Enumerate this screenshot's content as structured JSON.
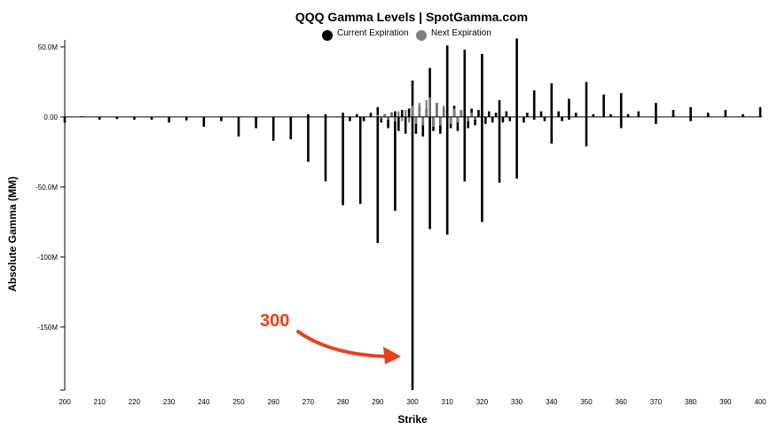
{
  "chart_data": {
    "type": "bar",
    "title": "QQQ Gamma Levels | SpotGamma.com",
    "xlabel": "Strike",
    "ylabel": "Absolute Gamma (MM)",
    "xlim": [
      200,
      400
    ],
    "ylim": [
      -195,
      55
    ],
    "x_ticks": [
      200,
      210,
      220,
      230,
      240,
      250,
      260,
      270,
      280,
      290,
      300,
      310,
      320,
      330,
      340,
      350,
      360,
      370,
      380,
      390,
      400
    ],
    "y_ticks": [
      {
        "value": 50,
        "label": "50.0M"
      },
      {
        "value": 0,
        "label": "0.00"
      },
      {
        "value": -50,
        "label": "-50.0M"
      },
      {
        "value": -100,
        "label": "-100M"
      },
      {
        "value": -150,
        "label": "-150M"
      }
    ],
    "legend": {
      "placement": "top-center"
    },
    "series": [
      {
        "name": "Current Expiration",
        "color": "#000000",
        "points": [
          {
            "x": 200,
            "y": -4
          },
          {
            "x": 205,
            "y": 0.5
          },
          {
            "x": 210,
            "y": -2
          },
          {
            "x": 215,
            "y": -1.5
          },
          {
            "x": 220,
            "y": -2
          },
          {
            "x": 225,
            "y": -2
          },
          {
            "x": 230,
            "y": -4
          },
          {
            "x": 235,
            "y": -2.5
          },
          {
            "x": 240,
            "y": -7
          },
          {
            "x": 245,
            "y": -3
          },
          {
            "x": 250,
            "y": -14
          },
          {
            "x": 255,
            "y": -8
          },
          {
            "x": 260,
            "y": -17
          },
          {
            "x": 265,
            "y": -16
          },
          {
            "x": 270,
            "y": -32
          },
          {
            "x": 270,
            "y": 2
          },
          {
            "x": 275,
            "y": -46
          },
          {
            "x": 275,
            "y": 2
          },
          {
            "x": 280,
            "y": -63
          },
          {
            "x": 280,
            "y": 3
          },
          {
            "x": 282,
            "y": -3
          },
          {
            "x": 284,
            "y": 2
          },
          {
            "x": 285,
            "y": -62
          },
          {
            "x": 286,
            "y": -3
          },
          {
            "x": 288,
            "y": 3
          },
          {
            "x": 290,
            "y": -90
          },
          {
            "x": 290,
            "y": 7
          },
          {
            "x": 291,
            "y": -4
          },
          {
            "x": 292,
            "y": 2
          },
          {
            "x": 293,
            "y": -8
          },
          {
            "x": 294,
            "y": 3
          },
          {
            "x": 295,
            "y": -67
          },
          {
            "x": 295,
            "y": 4
          },
          {
            "x": 296,
            "y": -10
          },
          {
            "x": 297,
            "y": 5
          },
          {
            "x": 298,
            "y": -12
          },
          {
            "x": 299,
            "y": 6
          },
          {
            "x": 300,
            "y": -195
          },
          {
            "x": 300,
            "y": 26
          },
          {
            "x": 301,
            "y": -12
          },
          {
            "x": 302,
            "y": 8
          },
          {
            "x": 303,
            "y": -14
          },
          {
            "x": 304,
            "y": 6
          },
          {
            "x": 305,
            "y": -80
          },
          {
            "x": 305,
            "y": 35
          },
          {
            "x": 306,
            "y": -10
          },
          {
            "x": 307,
            "y": 10
          },
          {
            "x": 308,
            "y": -12
          },
          {
            "x": 309,
            "y": 6
          },
          {
            "x": 310,
            "y": -84
          },
          {
            "x": 310,
            "y": 51
          },
          {
            "x": 311,
            "y": -8
          },
          {
            "x": 312,
            "y": 8
          },
          {
            "x": 313,
            "y": -10
          },
          {
            "x": 314,
            "y": 5
          },
          {
            "x": 315,
            "y": -46
          },
          {
            "x": 315,
            "y": 48
          },
          {
            "x": 316,
            "y": -8
          },
          {
            "x": 317,
            "y": 6
          },
          {
            "x": 318,
            "y": -6
          },
          {
            "x": 319,
            "y": 5
          },
          {
            "x": 320,
            "y": -75
          },
          {
            "x": 320,
            "y": 45
          },
          {
            "x": 321,
            "y": -5
          },
          {
            "x": 322,
            "y": 4
          },
          {
            "x": 323,
            "y": -4
          },
          {
            "x": 324,
            "y": 3
          },
          {
            "x": 325,
            "y": -47
          },
          {
            "x": 325,
            "y": 12
          },
          {
            "x": 326,
            "y": -4
          },
          {
            "x": 327,
            "y": 4
          },
          {
            "x": 328,
            "y": -3
          },
          {
            "x": 330,
            "y": -44
          },
          {
            "x": 330,
            "y": 56
          },
          {
            "x": 332,
            "y": -4
          },
          {
            "x": 333,
            "y": 3
          },
          {
            "x": 335,
            "y": -2
          },
          {
            "x": 335,
            "y": 19
          },
          {
            "x": 337,
            "y": 4
          },
          {
            "x": 338,
            "y": -3
          },
          {
            "x": 340,
            "y": -19
          },
          {
            "x": 340,
            "y": 24
          },
          {
            "x": 342,
            "y": 4
          },
          {
            "x": 343,
            "y": -3
          },
          {
            "x": 345,
            "y": 13
          },
          {
            "x": 345,
            "y": -2
          },
          {
            "x": 347,
            "y": 3
          },
          {
            "x": 350,
            "y": -21
          },
          {
            "x": 350,
            "y": 25
          },
          {
            "x": 352,
            "y": 2
          },
          {
            "x": 355,
            "y": 16
          },
          {
            "x": 357,
            "y": 2
          },
          {
            "x": 360,
            "y": -8
          },
          {
            "x": 360,
            "y": 17
          },
          {
            "x": 362,
            "y": 2
          },
          {
            "x": 365,
            "y": 4
          },
          {
            "x": 370,
            "y": -5
          },
          {
            "x": 370,
            "y": 10
          },
          {
            "x": 375,
            "y": 5
          },
          {
            "x": 380,
            "y": -3
          },
          {
            "x": 380,
            "y": 7
          },
          {
            "x": 385,
            "y": 3
          },
          {
            "x": 390,
            "y": 5
          },
          {
            "x": 395,
            "y": 2
          },
          {
            "x": 400,
            "y": 7
          }
        ]
      },
      {
        "name": "Next Expiration",
        "color": "#808080",
        "points": [
          {
            "x": 290,
            "y": 1.5
          },
          {
            "x": 291,
            "y": -1.5
          },
          {
            "x": 292,
            "y": 2
          },
          {
            "x": 293,
            "y": -2
          },
          {
            "x": 294,
            "y": 2.5
          },
          {
            "x": 295,
            "y": -3
          },
          {
            "x": 296,
            "y": 4
          },
          {
            "x": 297,
            "y": -3
          },
          {
            "x": 298,
            "y": 5
          },
          {
            "x": 299,
            "y": -4
          },
          {
            "x": 300,
            "y": 8
          },
          {
            "x": 301,
            "y": -5
          },
          {
            "x": 302,
            "y": 10
          },
          {
            "x": 303,
            "y": -6
          },
          {
            "x": 304,
            "y": 12
          },
          {
            "x": 305,
            "y": 14
          },
          {
            "x": 306,
            "y": -7
          },
          {
            "x": 307,
            "y": 10
          },
          {
            "x": 308,
            "y": -6
          },
          {
            "x": 309,
            "y": 8
          },
          {
            "x": 311,
            "y": -5
          },
          {
            "x": 312,
            "y": 6
          },
          {
            "x": 313,
            "y": -4
          },
          {
            "x": 314,
            "y": 5
          },
          {
            "x": 316,
            "y": -3
          },
          {
            "x": 317,
            "y": 3
          },
          {
            "x": 318,
            "y": -2
          }
        ]
      }
    ],
    "annotations": [
      {
        "text": "300",
        "color": "#e8411f",
        "points_to_x": 300
      }
    ]
  }
}
